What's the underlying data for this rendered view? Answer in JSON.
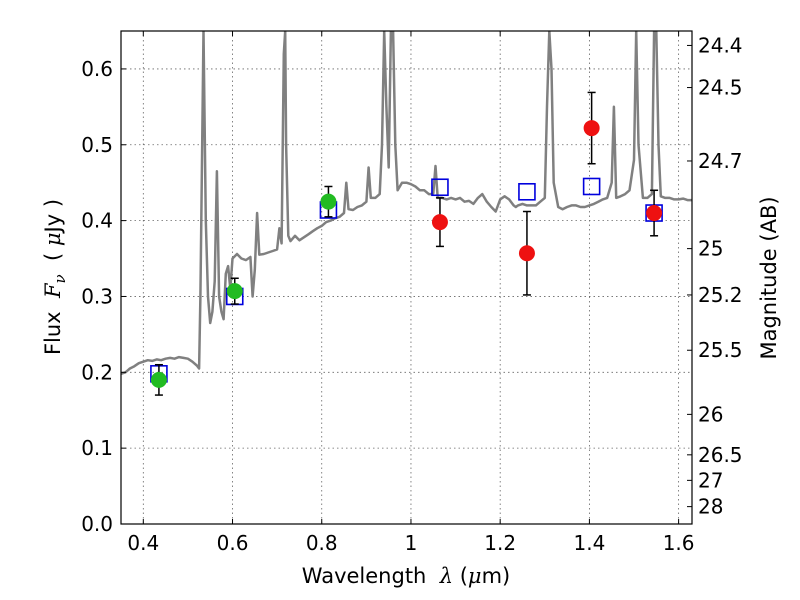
{
  "chart_data": {
    "type": "scatter",
    "title": "",
    "xlabel": "Wavelength  λ (μm)",
    "ylabel": "Flux  Fν  ( μJy )",
    "y2label": "Magnitude (AB)",
    "xlim": [
      0.35,
      1.63
    ],
    "ylim": [
      0.0,
      0.65
    ],
    "grid": true,
    "x_ticks": [
      0.4,
      0.6,
      0.8,
      1.0,
      1.2,
      1.4,
      1.6
    ],
    "x_tick_labels": [
      "0.4",
      "0.6",
      "0.8",
      "1",
      "1.2",
      "1.4",
      "1.6"
    ],
    "y_ticks": [
      0.0,
      0.1,
      0.2,
      0.3,
      0.4,
      0.5,
      0.6
    ],
    "y_tick_labels": [
      "0.0",
      "0.1",
      "0.2",
      "0.3",
      "0.4",
      "0.5",
      "0.6"
    ],
    "y2_ticks": [
      {
        "mag": 24.4,
        "label": "24.4"
      },
      {
        "mag": 24.5,
        "label": "24.5"
      },
      {
        "mag": 24.7,
        "label": "24.7"
      },
      {
        "mag": 25.0,
        "label": "25"
      },
      {
        "mag": 25.2,
        "label": "25.2"
      },
      {
        "mag": 25.5,
        "label": "25.5"
      },
      {
        "mag": 26.0,
        "label": "26"
      },
      {
        "mag": 26.5,
        "label": "26.5"
      },
      {
        "mag": 27.0,
        "label": "27"
      },
      {
        "mag": 28.0,
        "label": "28"
      }
    ],
    "colors": {
      "model": "#808080",
      "observed_green": "#22bb22",
      "observed_red": "#ee1111",
      "model_band": "#0000dd",
      "errorbar": "#000000",
      "grid": "#666666"
    },
    "series": [
      {
        "type": "line",
        "points": [
          [
            0.35,
            0.198
          ],
          [
            0.36,
            0.2
          ],
          [
            0.37,
            0.205
          ],
          [
            0.38,
            0.208
          ],
          [
            0.39,
            0.212
          ],
          [
            0.4,
            0.214
          ],
          [
            0.41,
            0.216
          ],
          [
            0.42,
            0.215
          ],
          [
            0.43,
            0.217
          ],
          [
            0.44,
            0.216
          ],
          [
            0.45,
            0.218
          ],
          [
            0.46,
            0.219
          ],
          [
            0.47,
            0.218
          ],
          [
            0.48,
            0.22
          ],
          [
            0.49,
            0.219
          ],
          [
            0.5,
            0.218
          ],
          [
            0.51,
            0.214
          ],
          [
            0.52,
            0.209
          ],
          [
            0.525,
            0.205
          ],
          [
            0.528,
            0.3
          ],
          [
            0.53,
            0.4
          ],
          [
            0.535,
            0.65
          ],
          [
            0.54,
            0.4
          ],
          [
            0.545,
            0.3
          ],
          [
            0.55,
            0.265
          ],
          [
            0.555,
            0.28
          ],
          [
            0.56,
            0.32
          ],
          [
            0.565,
            0.465
          ],
          [
            0.57,
            0.3
          ],
          [
            0.575,
            0.28
          ],
          [
            0.58,
            0.27
          ],
          [
            0.585,
            0.33
          ],
          [
            0.59,
            0.34
          ],
          [
            0.595,
            0.31
          ],
          [
            0.6,
            0.35
          ],
          [
            0.61,
            0.356
          ],
          [
            0.62,
            0.35
          ],
          [
            0.63,
            0.348
          ],
          [
            0.64,
            0.352
          ],
          [
            0.645,
            0.3
          ],
          [
            0.65,
            0.335
          ],
          [
            0.655,
            0.41
          ],
          [
            0.66,
            0.355
          ],
          [
            0.67,
            0.356
          ],
          [
            0.68,
            0.358
          ],
          [
            0.69,
            0.36
          ],
          [
            0.7,
            0.362
          ],
          [
            0.705,
            0.39
          ],
          [
            0.71,
            0.37
          ],
          [
            0.715,
            0.62
          ],
          [
            0.718,
            0.65
          ],
          [
            0.72,
            0.5
          ],
          [
            0.725,
            0.38
          ],
          [
            0.73,
            0.373
          ],
          [
            0.74,
            0.38
          ],
          [
            0.75,
            0.374
          ],
          [
            0.76,
            0.378
          ],
          [
            0.77,
            0.382
          ],
          [
            0.78,
            0.386
          ],
          [
            0.79,
            0.39
          ],
          [
            0.8,
            0.393
          ],
          [
            0.81,
            0.398
          ],
          [
            0.82,
            0.4
          ],
          [
            0.83,
            0.403
          ],
          [
            0.84,
            0.405
          ],
          [
            0.85,
            0.41
          ],
          [
            0.855,
            0.45
          ],
          [
            0.86,
            0.415
          ],
          [
            0.87,
            0.414
          ],
          [
            0.88,
            0.418
          ],
          [
            0.89,
            0.42
          ],
          [
            0.9,
            0.425
          ],
          [
            0.905,
            0.47
          ],
          [
            0.91,
            0.43
          ],
          [
            0.92,
            0.43
          ],
          [
            0.93,
            0.435
          ],
          [
            0.935,
            0.5
          ],
          [
            0.94,
            0.65
          ],
          [
            0.945,
            0.55
          ],
          [
            0.95,
            0.47
          ],
          [
            0.955,
            0.65
          ],
          [
            0.96,
            0.65
          ],
          [
            0.965,
            0.5
          ],
          [
            0.97,
            0.44
          ],
          [
            0.98,
            0.45
          ],
          [
            0.99,
            0.45
          ],
          [
            1.0,
            0.448
          ],
          [
            1.01,
            0.445
          ],
          [
            1.02,
            0.44
          ],
          [
            1.03,
            0.44
          ],
          [
            1.04,
            0.435
          ],
          [
            1.045,
            0.435
          ],
          [
            1.05,
            0.436
          ],
          [
            1.055,
            0.472
          ],
          [
            1.06,
            0.43
          ],
          [
            1.07,
            0.43
          ],
          [
            1.08,
            0.428
          ],
          [
            1.09,
            0.43
          ],
          [
            1.1,
            0.428
          ],
          [
            1.11,
            0.43
          ],
          [
            1.12,
            0.425
          ],
          [
            1.13,
            0.426
          ],
          [
            1.14,
            0.422
          ],
          [
            1.15,
            0.43
          ],
          [
            1.16,
            0.435
          ],
          [
            1.17,
            0.425
          ],
          [
            1.18,
            0.418
          ],
          [
            1.19,
            0.412
          ],
          [
            1.2,
            0.428
          ],
          [
            1.21,
            0.432
          ],
          [
            1.22,
            0.428
          ],
          [
            1.23,
            0.42
          ],
          [
            1.235,
            0.418
          ],
          [
            1.24,
            0.42
          ],
          [
            1.25,
            0.422
          ],
          [
            1.26,
            0.42
          ],
          [
            1.27,
            0.42
          ],
          [
            1.28,
            0.42
          ],
          [
            1.29,
            0.425
          ],
          [
            1.3,
            0.43
          ],
          [
            1.305,
            0.55
          ],
          [
            1.31,
            0.65
          ],
          [
            1.315,
            0.6
          ],
          [
            1.32,
            0.45
          ],
          [
            1.33,
            0.418
          ],
          [
            1.34,
            0.415
          ],
          [
            1.35,
            0.418
          ],
          [
            1.36,
            0.42
          ],
          [
            1.37,
            0.42
          ],
          [
            1.38,
            0.418
          ],
          [
            1.39,
            0.418
          ],
          [
            1.4,
            0.42
          ],
          [
            1.41,
            0.422
          ],
          [
            1.42,
            0.425
          ],
          [
            1.43,
            0.428
          ],
          [
            1.44,
            0.43
          ],
          [
            1.45,
            0.45
          ],
          [
            1.455,
            0.55
          ],
          [
            1.46,
            0.43
          ],
          [
            1.47,
            0.432
          ],
          [
            1.48,
            0.435
          ],
          [
            1.49,
            0.44
          ],
          [
            1.5,
            0.48
          ],
          [
            1.505,
            0.65
          ],
          [
            1.51,
            0.5
          ],
          [
            1.52,
            0.43
          ],
          [
            1.53,
            0.43
          ],
          [
            1.54,
            0.435
          ],
          [
            1.545,
            0.65
          ],
          [
            1.55,
            0.65
          ],
          [
            1.555,
            0.5
          ],
          [
            1.56,
            0.432
          ],
          [
            1.57,
            0.43
          ],
          [
            1.58,
            0.43
          ],
          [
            1.59,
            0.428
          ],
          [
            1.6,
            0.428
          ],
          [
            1.61,
            0.429
          ],
          [
            1.62,
            0.427
          ],
          [
            1.63,
            0.427
          ]
        ]
      },
      {
        "type": "open_square",
        "points": [
          [
            0.435,
            0.198
          ],
          [
            0.605,
            0.3
          ],
          [
            0.815,
            0.414
          ],
          [
            1.065,
            0.444
          ],
          [
            1.26,
            0.438
          ],
          [
            1.405,
            0.445
          ],
          [
            1.545,
            0.41
          ]
        ]
      },
      {
        "type": "filled_circle",
        "color": "green",
        "points": [
          {
            "x": 0.435,
            "y": 0.19,
            "err": 0.02
          },
          {
            "x": 0.605,
            "y": 0.307,
            "err": 0.017
          },
          {
            "x": 0.815,
            "y": 0.425,
            "err": 0.02
          }
        ]
      },
      {
        "type": "filled_circle",
        "color": "red",
        "points": [
          {
            "x": 1.065,
            "y": 0.398,
            "err": 0.032
          },
          {
            "x": 1.26,
            "y": 0.357,
            "err": 0.055
          },
          {
            "x": 1.405,
            "y": 0.522,
            "err": 0.047
          },
          {
            "x": 1.545,
            "y": 0.41,
            "err": 0.03
          }
        ]
      }
    ]
  }
}
